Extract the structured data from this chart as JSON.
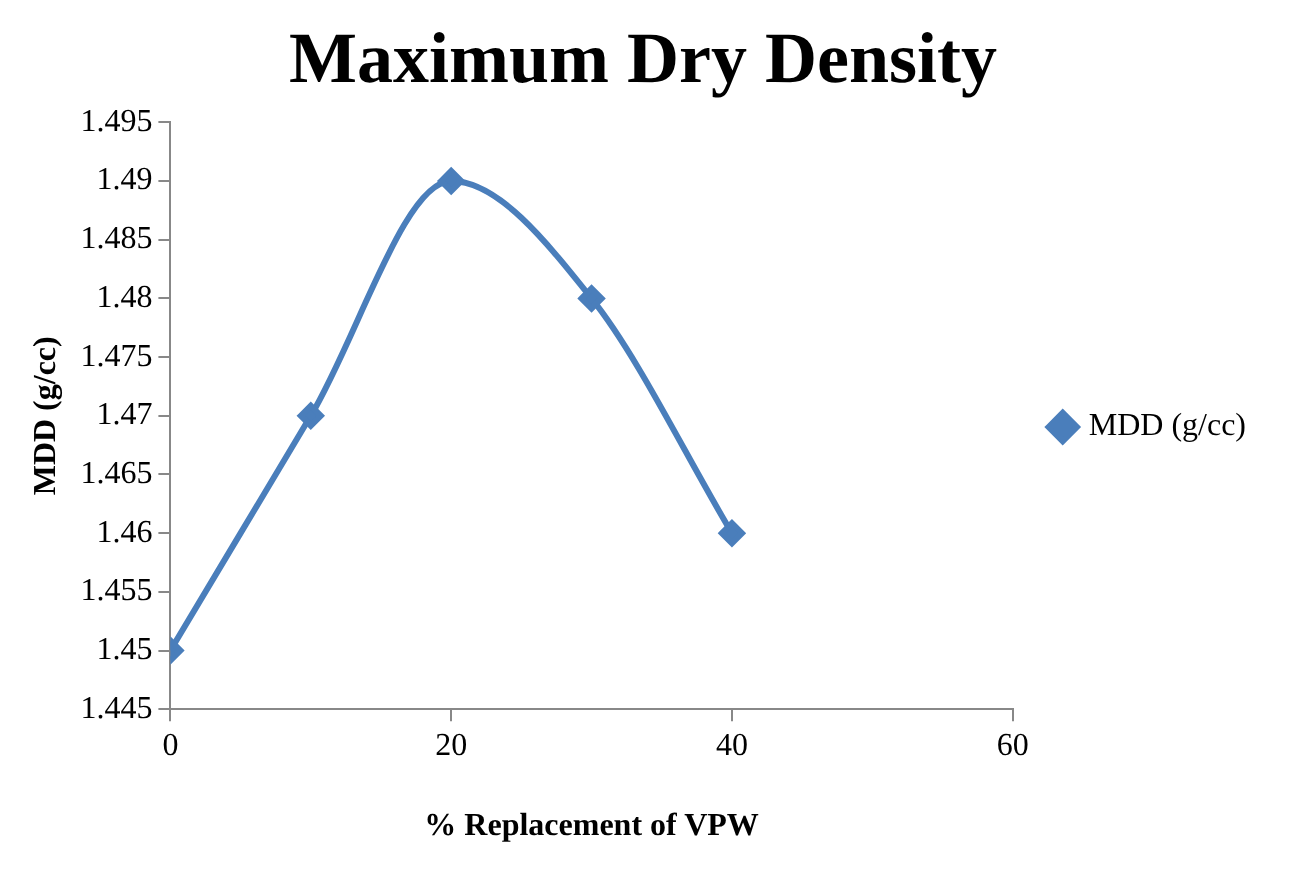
{
  "chart_data": {
    "type": "line",
    "title": "Maximum Dry Density",
    "xlabel": "% Replacement of VPW",
    "ylabel": "MDD (g/cc)",
    "x": [
      0,
      10,
      20,
      30,
      40
    ],
    "series": [
      {
        "name": "MDD (g/cc)",
        "color": "#4a7ebb",
        "values": [
          1.45,
          1.47,
          1.49,
          1.48,
          1.46
        ]
      }
    ],
    "xlim": [
      0,
      60
    ],
    "xticks": [
      0,
      20,
      40,
      60
    ],
    "ylim": [
      1.445,
      1.495
    ],
    "yticks": [
      1.445,
      1.45,
      1.455,
      1.46,
      1.465,
      1.47,
      1.475,
      1.48,
      1.485,
      1.49,
      1.495
    ],
    "grid": false,
    "legend": "right",
    "marker": "diamond",
    "line_style": "solid"
  }
}
